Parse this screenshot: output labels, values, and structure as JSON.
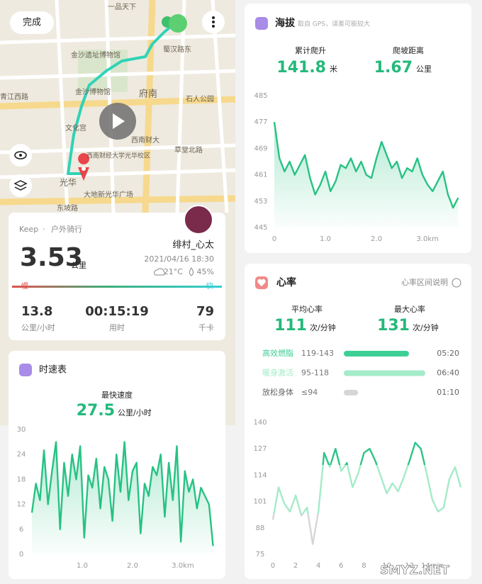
{
  "map": {
    "done": "完成",
    "labels": [
      "一品天下",
      "蜀汉路东",
      "金沙遗址博物馆",
      "金沙博物馆",
      "府南",
      "石人公园",
      "青江西路",
      "文化宫",
      "西南财大",
      "草堂北路",
      "西南财经大学光华校区",
      "光华",
      "大地新光华广场",
      "东坡路"
    ]
  },
  "summary": {
    "app": "Keep",
    "activity": "户外骑行",
    "distance": 3.53,
    "distance_unit": "公里",
    "user": "绯村_心太",
    "datetime": "2021/04/16 18:30",
    "temperature": "21°C",
    "humidity": "45%",
    "slow": "慢",
    "fast": "快",
    "stats": [
      {
        "value": 13.8,
        "label": "公里/小时"
      },
      {
        "value": "00:15:19",
        "label": "用时"
      },
      {
        "value": 79,
        "label": "千卡"
      }
    ]
  },
  "speed": {
    "max_label": "最快速度",
    "max_value": 27.5,
    "max_unit": "公里/小时"
  },
  "altitude": {
    "subtitle": "取自 GPS，误差可能较大",
    "climb_label": "累计爬升",
    "climb": 141.8,
    "climb_unit": "米",
    "slope_label": "爬坡距离",
    "slope": 1.67,
    "slope_unit": "公里"
  },
  "heart": {
    "legend_link": "心率区间说明",
    "avg_label": "平均心率",
    "avg": 111,
    "avg_unit": "次/分钟",
    "max_label": "最大心率",
    "max": 131,
    "max_unit": "次/分钟",
    "zones": [
      {
        "name": "高效燃脂",
        "range": "119-143",
        "low": 119,
        "time": "05:20",
        "color": "#3ecf95"
      },
      {
        "name": "暖身激活",
        "range": "95-118",
        "low": 95,
        "time": "06:40",
        "color": "#a4ebc9"
      },
      {
        "name": "放松身体",
        "range": "≤94",
        "time": "01:10",
        "color": "#d6d6d6"
      }
    ]
  },
  "chart_data": [
    {
      "type": "area",
      "title": "时速表",
      "color": "#27c283",
      "x": [
        0,
        0.08,
        0.16,
        0.24,
        0.32,
        0.4,
        0.48,
        0.56,
        0.64,
        0.72,
        0.8,
        0.88,
        0.96,
        1.04,
        1.12,
        1.2,
        1.28,
        1.36,
        1.44,
        1.52,
        1.6,
        1.68,
        1.76,
        1.84,
        1.92,
        2,
        2.08,
        2.16,
        2.24,
        2.32,
        2.4,
        2.48,
        2.56,
        2.64,
        2.72,
        2.8,
        2.88,
        2.96,
        3.04,
        3.12,
        3.2,
        3.28,
        3.36,
        3.44,
        3.52,
        3.6
      ],
      "values": [
        10,
        17,
        13,
        25,
        12,
        20,
        27,
        6,
        22,
        14,
        24,
        18,
        26,
        4,
        19,
        16,
        23,
        11,
        21,
        18,
        8,
        24,
        15,
        27,
        13,
        20,
        22,
        5,
        17,
        14,
        21,
        19,
        24,
        9,
        22,
        13,
        26,
        3,
        20,
        15,
        18,
        11,
        16,
        14,
        12,
        2
      ],
      "xlim": [
        0,
        3.62
      ],
      "ylim": [
        0,
        30
      ],
      "yticks": [
        0,
        6,
        12,
        18,
        24,
        30
      ],
      "xticks": [
        {
          "value": 1,
          "label": "1.0"
        },
        {
          "value": 2,
          "label": "2.0"
        },
        {
          "value": 3,
          "label": "3.0km"
        }
      ]
    },
    {
      "type": "area",
      "title": "海拔",
      "color": "#27c283",
      "x": [
        0,
        0.1,
        0.2,
        0.3,
        0.4,
        0.5,
        0.6,
        0.7,
        0.8,
        0.9,
        1,
        1.1,
        1.2,
        1.3,
        1.4,
        1.5,
        1.6,
        1.7,
        1.8,
        1.9,
        2,
        2.1,
        2.2,
        2.3,
        2.4,
        2.5,
        2.6,
        2.7,
        2.8,
        2.9,
        3,
        3.1,
        3.2,
        3.3,
        3.4,
        3.5,
        3.6
      ],
      "values": [
        477,
        466,
        462,
        465,
        461,
        464,
        467,
        460,
        455,
        458,
        462,
        456,
        459,
        464,
        463,
        466,
        462,
        465,
        461,
        460,
        466,
        471,
        467,
        463,
        465,
        460,
        463,
        462,
        466,
        461,
        458,
        456,
        459,
        462,
        455,
        451,
        454
      ],
      "xlim": [
        0,
        3.65
      ],
      "ylim": [
        445,
        485
      ],
      "yticks": [
        445,
        453,
        461,
        469,
        477,
        485
      ],
      "xticks": [
        0,
        {
          "value": 1,
          "label": "1.0"
        },
        {
          "value": 2,
          "label": "2.0"
        },
        {
          "value": 3,
          "label": "3.0km"
        }
      ]
    },
    {
      "type": "line",
      "title": "心率",
      "x": [
        0,
        0.5,
        1,
        1.5,
        2,
        2.5,
        3,
        3.5,
        4,
        4.5,
        5,
        5.5,
        6,
        6.5,
        7,
        7.5,
        8,
        8.5,
        9,
        9.5,
        10,
        10.5,
        11,
        11.5,
        12,
        12.5,
        13,
        13.5,
        14,
        14.5,
        15,
        15.5,
        16,
        16.5
      ],
      "values": [
        92,
        108,
        100,
        96,
        104,
        94,
        98,
        80,
        96,
        125,
        118,
        127,
        116,
        120,
        108,
        115,
        125,
        127,
        121,
        113,
        105,
        110,
        106,
        113,
        121,
        130,
        127,
        115,
        102,
        96,
        98,
        112,
        118,
        108
      ],
      "xlim": [
        0,
        16.5
      ],
      "ylim": [
        75,
        140
      ],
      "yticks": [
        75,
        88,
        101,
        114,
        127,
        140
      ],
      "xticks": [
        0,
        2,
        4,
        6,
        8,
        10,
        12,
        {
          "value": 14,
          "label": "14min"
        }
      ]
    }
  ],
  "watermark": "SMYZ.NET"
}
